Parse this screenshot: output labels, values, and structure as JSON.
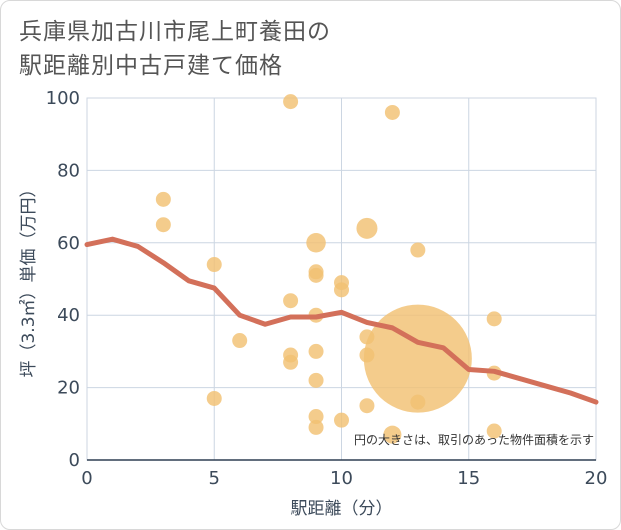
{
  "chart_data": {
    "type": "scatter",
    "title_lines": [
      "兵庫県加古川市尾上町養田の",
      "駅距離別中古戸建て価格"
    ],
    "xlabel": "駅距離（分）",
    "ylabel": "坪（3.3㎡）単価（万円）",
    "xlim": [
      0,
      20
    ],
    "ylim": [
      0,
      100
    ],
    "xticks": [
      0,
      5,
      10,
      15,
      20
    ],
    "yticks": [
      0,
      20,
      40,
      60,
      80,
      100
    ],
    "grid": true,
    "note": "円の大きさは、取引のあった物件面積を示す",
    "colors": {
      "bubble": "#f2c173",
      "line": "#d3705a",
      "grid": "#ccd6e2"
    },
    "bubbles": [
      {
        "x": 3,
        "y": 72,
        "s": 1
      },
      {
        "x": 3,
        "y": 65,
        "s": 1
      },
      {
        "x": 5,
        "y": 54,
        "s": 1
      },
      {
        "x": 5,
        "y": 17,
        "s": 1
      },
      {
        "x": 6,
        "y": 33,
        "s": 1
      },
      {
        "x": 8,
        "y": 99,
        "s": 1
      },
      {
        "x": 8,
        "y": 44,
        "s": 1
      },
      {
        "x": 8,
        "y": 29,
        "s": 1
      },
      {
        "x": 8,
        "y": 27,
        "s": 1
      },
      {
        "x": 9,
        "y": 60,
        "s": 1.3
      },
      {
        "x": 9,
        "y": 52,
        "s": 1
      },
      {
        "x": 9,
        "y": 51,
        "s": 1
      },
      {
        "x": 9,
        "y": 40,
        "s": 1
      },
      {
        "x": 9,
        "y": 30,
        "s": 1
      },
      {
        "x": 9,
        "y": 22,
        "s": 1
      },
      {
        "x": 9,
        "y": 12,
        "s": 1
      },
      {
        "x": 9,
        "y": 9,
        "s": 1
      },
      {
        "x": 10,
        "y": 49,
        "s": 1
      },
      {
        "x": 10,
        "y": 47,
        "s": 1
      },
      {
        "x": 10,
        "y": 11,
        "s": 1
      },
      {
        "x": 11,
        "y": 64,
        "s": 1.4
      },
      {
        "x": 11,
        "y": 34,
        "s": 1
      },
      {
        "x": 11,
        "y": 29,
        "s": 1
      },
      {
        "x": 11,
        "y": 15,
        "s": 1
      },
      {
        "x": 12,
        "y": 96,
        "s": 1
      },
      {
        "x": 12,
        "y": 7,
        "s": 1.2
      },
      {
        "x": 13,
        "y": 58,
        "s": 1
      },
      {
        "x": 13,
        "y": 28,
        "s": 7.2
      },
      {
        "x": 13,
        "y": 16,
        "s": 1
      },
      {
        "x": 16,
        "y": 39,
        "s": 1
      },
      {
        "x": 16,
        "y": 24,
        "s": 1
      },
      {
        "x": 16,
        "y": 8,
        "s": 1
      }
    ],
    "trend": {
      "x": [
        0,
        1,
        2,
        3,
        4,
        5,
        6,
        7,
        8,
        9,
        10,
        11,
        12,
        13,
        14,
        15,
        16,
        17,
        18,
        19,
        20
      ],
      "y": [
        59.5,
        61,
        59,
        54.5,
        49.5,
        47.5,
        40,
        37.5,
        39.5,
        39.5,
        40.8,
        38,
        36.5,
        32.5,
        31,
        25,
        24.5,
        22.5,
        20.5,
        18.5,
        16
      ]
    }
  }
}
